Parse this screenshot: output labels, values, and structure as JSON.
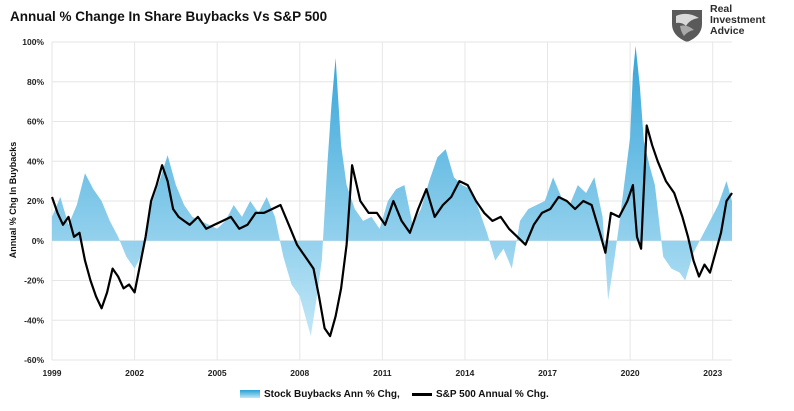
{
  "title": "Annual % Change In Share Buybacks Vs S&P 500",
  "logo": {
    "line1": "Real",
    "line2": "Investment",
    "line3": "Advice",
    "icon": "eagle-shield-logo"
  },
  "colors": {
    "buybacks": "#2a9fd6",
    "buybacks_light": "#bfe6f7",
    "sp500": "#000000",
    "grid": "#e6e6e6"
  },
  "chart_data": {
    "type": "area",
    "title": "Annual % Change In Share Buybacks Vs S&P 500",
    "ylabel": "Annual % Chg In Buybacks",
    "xlabel": "",
    "ylim": [
      -60,
      100
    ],
    "xlim": [
      1999.0,
      2023.7
    ],
    "grid": true,
    "legend_position": "bottom",
    "y_ticks": [
      "100%",
      "80%",
      "60%",
      "40%",
      "20%",
      "0%",
      "-20%",
      "-40%",
      "-60%"
    ],
    "y_tick_values": [
      100,
      80,
      60,
      40,
      20,
      0,
      -20,
      -40,
      -60
    ],
    "x_ticks": [
      "1999",
      "2002",
      "2005",
      "2008",
      "2011",
      "2014",
      "2017",
      "2020",
      "2023"
    ],
    "x_tick_values": [
      1999,
      2002,
      2005,
      2008,
      2011,
      2014,
      2017,
      2020,
      2023
    ],
    "series": [
      {
        "name": "Stock Buybacks Ann % Chg,",
        "style": "area",
        "x": [
          1999.0,
          1999.3,
          1999.6,
          1999.9,
          2000.2,
          2000.5,
          2000.8,
          2001.1,
          2001.4,
          2001.7,
          2002.0,
          2002.3,
          2002.6,
          2002.9,
          2003.2,
          2003.5,
          2003.8,
          2004.1,
          2004.4,
          2004.7,
          2005.0,
          2005.3,
          2005.6,
          2005.9,
          2006.2,
          2006.5,
          2006.8,
          2007.1,
          2007.4,
          2007.7,
          2008.0,
          2008.2,
          2008.4,
          2008.6,
          2008.8,
          2009.0,
          2009.15,
          2009.3,
          2009.5,
          2009.7,
          2010.0,
          2010.3,
          2010.6,
          2010.9,
          2011.2,
          2011.5,
          2011.8,
          2012.1,
          2012.4,
          2012.7,
          2013.0,
          2013.3,
          2013.6,
          2013.9,
          2014.2,
          2014.5,
          2014.8,
          2015.1,
          2015.4,
          2015.7,
          2016.0,
          2016.3,
          2016.6,
          2016.9,
          2017.2,
          2017.5,
          2017.8,
          2018.1,
          2018.4,
          2018.7,
          2019.0,
          2019.2,
          2019.4,
          2019.6,
          2019.8,
          2020.0,
          2020.1,
          2020.2,
          2020.35,
          2020.5,
          2020.7,
          2020.9,
          2021.2,
          2021.5,
          2021.8,
          2022.0,
          2022.3,
          2022.6,
          2022.9,
          2023.2,
          2023.5,
          2023.7
        ],
        "values": [
          12,
          22,
          8,
          18,
          34,
          26,
          20,
          10,
          2,
          -8,
          -14,
          -6,
          18,
          30,
          43,
          28,
          18,
          12,
          10,
          8,
          6,
          10,
          18,
          12,
          20,
          14,
          22,
          12,
          -8,
          -22,
          -28,
          -38,
          -48,
          -30,
          -10,
          38,
          68,
          92,
          48,
          28,
          16,
          10,
          12,
          6,
          20,
          26,
          28,
          8,
          16,
          30,
          42,
          46,
          32,
          28,
          26,
          16,
          4,
          -10,
          -4,
          -14,
          10,
          16,
          18,
          20,
          32,
          22,
          18,
          28,
          24,
          32,
          12,
          -30,
          -12,
          8,
          30,
          52,
          84,
          98,
          78,
          50,
          38,
          28,
          -8,
          -14,
          -16,
          -20,
          -6,
          2,
          10,
          18,
          30,
          20
        ]
      },
      {
        "name": "S&P 500 Annual % Chg.",
        "style": "line",
        "x": [
          1999.0,
          1999.2,
          1999.4,
          1999.6,
          1999.8,
          2000.0,
          2000.2,
          2000.4,
          2000.6,
          2000.8,
          2001.0,
          2001.2,
          2001.4,
          2001.6,
          2001.8,
          2002.0,
          2002.2,
          2002.4,
          2002.6,
          2002.8,
          2003.0,
          2003.2,
          2003.4,
          2003.6,
          2003.8,
          2004.0,
          2004.3,
          2004.6,
          2004.9,
          2005.2,
          2005.5,
          2005.8,
          2006.1,
          2006.4,
          2006.7,
          2007.0,
          2007.3,
          2007.6,
          2007.9,
          2008.1,
          2008.3,
          2008.5,
          2008.7,
          2008.9,
          2009.1,
          2009.3,
          2009.5,
          2009.7,
          2009.9,
          2010.2,
          2010.5,
          2010.8,
          2011.1,
          2011.4,
          2011.7,
          2012.0,
          2012.3,
          2012.6,
          2012.9,
          2013.2,
          2013.5,
          2013.8,
          2014.1,
          2014.4,
          2014.7,
          2015.0,
          2015.3,
          2015.6,
          2015.9,
          2016.2,
          2016.5,
          2016.8,
          2017.1,
          2017.4,
          2017.7,
          2018.0,
          2018.3,
          2018.6,
          2018.9,
          2019.1,
          2019.3,
          2019.6,
          2019.9,
          2020.1,
          2020.25,
          2020.4,
          2020.6,
          2020.8,
          2021.0,
          2021.3,
          2021.6,
          2021.9,
          2022.1,
          2022.3,
          2022.5,
          2022.7,
          2022.9,
          2023.1,
          2023.3,
          2023.5,
          2023.7
        ],
        "values": [
          22,
          14,
          8,
          12,
          2,
          4,
          -10,
          -20,
          -28,
          -34,
          -26,
          -14,
          -18,
          -24,
          -22,
          -26,
          -12,
          2,
          20,
          28,
          38,
          30,
          16,
          12,
          10,
          8,
          12,
          6,
          8,
          10,
          12,
          6,
          8,
          14,
          14,
          16,
          18,
          8,
          -2,
          -6,
          -10,
          -14,
          -28,
          -44,
          -48,
          -38,
          -24,
          -2,
          38,
          20,
          14,
          14,
          8,
          20,
          10,
          4,
          16,
          26,
          12,
          18,
          22,
          30,
          28,
          20,
          14,
          10,
          12,
          6,
          2,
          -2,
          8,
          14,
          16,
          22,
          20,
          16,
          20,
          18,
          4,
          -6,
          14,
          12,
          20,
          28,
          2,
          -4,
          58,
          48,
          40,
          30,
          24,
          12,
          2,
          -10,
          -18,
          -12,
          -16,
          -6,
          4,
          20,
          24
        ]
      }
    ]
  },
  "legend": [
    {
      "label": "Stock Buybacks Ann % Chg,",
      "swatch": "area"
    },
    {
      "label": "S&P 500 Annual % Chg.",
      "swatch": "line"
    }
  ]
}
